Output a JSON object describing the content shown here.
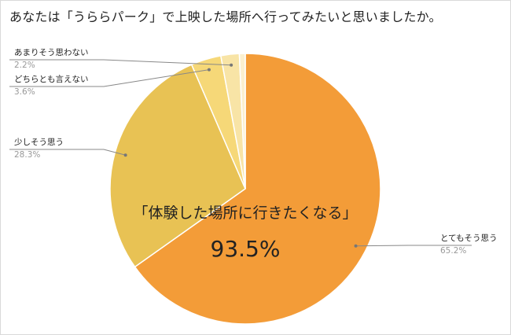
{
  "title": "あなたは「うららパーク」で上映した場所へ行ってみたいと思いましたか。",
  "chart_data": {
    "type": "pie",
    "title": "あなたは「うららパーク」で上映した場所へ行ってみたいと思いましたか。",
    "slices": [
      {
        "label": "とてもそう思う",
        "value": 65.2,
        "value_label": "65.2%",
        "color": "#f39c38"
      },
      {
        "label": "少しそう思う",
        "value": 28.3,
        "value_label": "28.3%",
        "color": "#e8c254"
      },
      {
        "label": "どちらとも言えない",
        "value": 3.6,
        "value_label": "3.6%",
        "color": "#f6d878"
      },
      {
        "label": "あまりそう思わない",
        "value": 2.2,
        "value_label": "2.2%",
        "color": "#f8e4a6"
      },
      {
        "label": "",
        "value": 0.7,
        "value_label": "",
        "color": "#fbf0cf"
      }
    ],
    "annotation": {
      "text": "「体験した場所に行きたくなる」",
      "value": "93.5%"
    }
  }
}
